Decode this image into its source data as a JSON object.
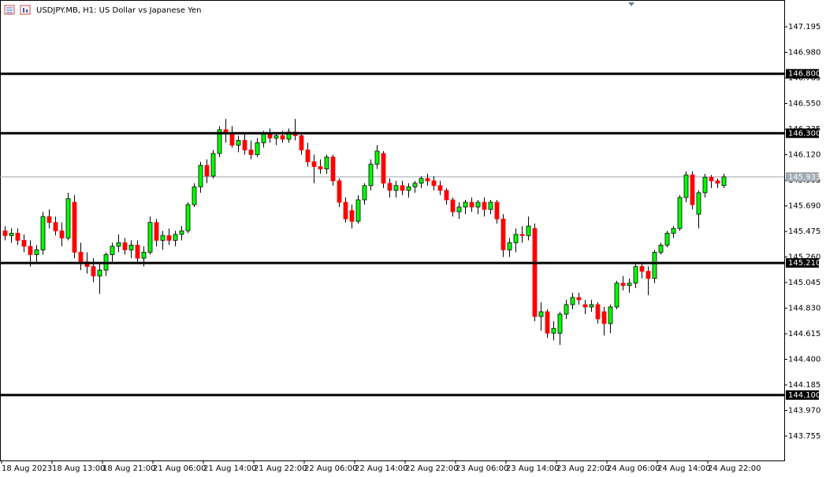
{
  "chart_data": {
    "type": "candlestick",
    "title": "USDJPY.MB, H1:  US Dollar vs Japanese Yen",
    "up_color": "#00ff00",
    "down_color": "#ff0000",
    "outline_color": "#000000",
    "ylim": [
      143.55,
      147.42
    ],
    "yticks": [
      147.195,
      {
        "value": 146.98,
        "label": "146.980"
      },
      146.765,
      {
        "value": 146.55,
        "label": "146.550"
      },
      146.335,
      {
        "value": 146.12,
        "label": "146.120"
      },
      145.905,
      {
        "value": 145.69,
        "label": "145.690"
      },
      145.475,
      {
        "value": 145.26,
        "label": "145.260"
      },
      145.045,
      {
        "value": 144.83,
        "label": "144.830"
      },
      144.615,
      {
        "value": 144.4,
        "label": "144.400"
      },
      144.185,
      {
        "value": 143.97,
        "label": "143.970"
      },
      143.755
    ],
    "hlines": [
      {
        "value": 146.8,
        "label": "146.800"
      },
      {
        "value": 146.3,
        "label": "146.300"
      },
      {
        "value": 145.21,
        "label": "145.210"
      },
      {
        "value": 144.1,
        "label": "144.100"
      }
    ],
    "last_price": 145.933,
    "categories": [
      "18 Aug 2023",
      null,
      null,
      null,
      null,
      null,
      null,
      null,
      "18 Aug 13:00",
      null,
      null,
      null,
      null,
      null,
      null,
      null,
      "18 Aug 21:00",
      null,
      null,
      null,
      null,
      null,
      null,
      null,
      "21 Aug 06:00",
      null,
      null,
      null,
      null,
      null,
      null,
      null,
      "21 Aug 14:00",
      null,
      null,
      null,
      null,
      null,
      null,
      null,
      "21 Aug 22:00",
      null,
      null,
      null,
      null,
      null,
      null,
      null,
      "22 Aug 06:00",
      null,
      null,
      null,
      null,
      null,
      null,
      null,
      "22 Aug 14:00",
      null,
      null,
      null,
      null,
      null,
      null,
      null,
      "22 Aug 22:00",
      null,
      null,
      null,
      null,
      null,
      null,
      null,
      "23 Aug 06:00",
      null,
      null,
      null,
      null,
      null,
      null,
      null,
      "23 Aug 14:00",
      null,
      null,
      null,
      null,
      null,
      null,
      null,
      "23 Aug 22:00",
      null,
      null,
      null,
      null,
      null,
      null,
      null,
      "24 Aug 06:00",
      null,
      null,
      null,
      null,
      null,
      null,
      null,
      "24 Aug 14:00",
      null,
      null,
      null,
      null,
      null,
      null,
      null,
      "24 Aug 22:00",
      null,
      null
    ],
    "ohlc": [
      [
        145.48,
        145.52,
        145.4,
        145.44
      ],
      [
        145.44,
        145.5,
        145.38,
        145.46
      ],
      [
        145.46,
        145.5,
        145.36,
        145.4
      ],
      [
        145.4,
        145.45,
        145.3,
        145.35
      ],
      [
        145.35,
        145.4,
        145.18,
        145.28
      ],
      [
        145.28,
        145.36,
        145.2,
        145.32
      ],
      [
        145.32,
        145.64,
        145.28,
        145.6
      ],
      [
        145.6,
        145.66,
        145.5,
        145.55
      ],
      [
        145.55,
        145.6,
        145.44,
        145.48
      ],
      [
        145.48,
        145.55,
        145.35,
        145.42
      ],
      [
        145.42,
        145.8,
        145.4,
        145.75
      ],
      [
        145.72,
        145.78,
        145.25,
        145.3
      ],
      [
        145.3,
        145.38,
        145.15,
        145.22
      ],
      [
        145.22,
        145.3,
        145.12,
        145.18
      ],
      [
        145.18,
        145.25,
        145.05,
        145.1
      ],
      [
        145.1,
        145.2,
        144.95,
        145.15
      ],
      [
        145.15,
        145.3,
        145.1,
        145.28
      ],
      [
        145.28,
        145.38,
        145.22,
        145.35
      ],
      [
        145.35,
        145.45,
        145.3,
        145.38
      ],
      [
        145.38,
        145.42,
        145.28,
        145.32
      ],
      [
        145.32,
        145.4,
        145.25,
        145.36
      ],
      [
        145.36,
        145.4,
        145.2,
        145.25
      ],
      [
        145.25,
        145.35,
        145.18,
        145.3
      ],
      [
        145.3,
        145.6,
        145.28,
        145.55
      ],
      [
        145.55,
        145.58,
        145.35,
        145.4
      ],
      [
        145.4,
        145.48,
        145.32,
        145.44
      ],
      [
        145.44,
        145.5,
        145.36,
        145.4
      ],
      [
        145.4,
        145.48,
        145.35,
        145.45
      ],
      [
        145.45,
        145.52,
        145.4,
        145.48
      ],
      [
        145.48,
        145.72,
        145.46,
        145.7
      ],
      [
        145.7,
        145.88,
        145.68,
        145.85
      ],
      [
        145.85,
        146.06,
        145.8,
        146.03
      ],
      [
        146.03,
        146.08,
        145.88,
        145.94
      ],
      [
        145.94,
        146.16,
        145.92,
        146.13
      ],
      [
        146.13,
        146.36,
        146.1,
        146.33
      ],
      [
        146.33,
        146.42,
        146.22,
        146.3
      ],
      [
        146.3,
        146.36,
        146.18,
        146.2
      ],
      [
        146.2,
        146.28,
        146.14,
        146.24
      ],
      [
        146.24,
        146.3,
        146.12,
        146.16
      ],
      [
        146.16,
        146.24,
        146.08,
        146.12
      ],
      [
        146.12,
        146.26,
        146.1,
        146.22
      ],
      [
        146.22,
        146.32,
        146.18,
        146.3
      ],
      [
        146.3,
        146.34,
        146.22,
        146.26
      ],
      [
        146.26,
        146.3,
        146.2,
        146.28
      ],
      [
        146.28,
        146.32,
        146.22,
        146.25
      ],
      [
        146.25,
        146.34,
        146.22,
        146.31
      ],
      [
        146.31,
        146.42,
        146.24,
        146.28
      ],
      [
        146.28,
        146.3,
        146.12,
        146.16
      ],
      [
        146.16,
        146.22,
        146.02,
        146.06
      ],
      [
        146.06,
        146.12,
        145.88,
        146.02
      ],
      [
        146.02,
        146.08,
        145.96,
        146.0
      ],
      [
        146.0,
        146.12,
        145.96,
        146.1
      ],
      [
        146.1,
        146.12,
        145.86,
        145.9
      ],
      [
        145.9,
        145.92,
        145.68,
        145.72
      ],
      [
        145.72,
        145.76,
        145.55,
        145.58
      ],
      [
        145.65,
        145.7,
        145.5,
        145.56
      ],
      [
        145.56,
        145.78,
        145.54,
        145.74
      ],
      [
        145.74,
        145.88,
        145.7,
        145.86
      ],
      [
        145.86,
        146.08,
        145.82,
        146.04
      ],
      [
        146.04,
        146.2,
        146.0,
        146.15
      ],
      [
        146.13,
        146.15,
        145.84,
        145.88
      ],
      [
        145.88,
        145.92,
        145.76,
        145.82
      ],
      [
        145.82,
        145.9,
        145.76,
        145.86
      ],
      [
        145.86,
        145.9,
        145.78,
        145.82
      ],
      [
        145.82,
        145.88,
        145.76,
        145.85
      ],
      [
        145.85,
        145.9,
        145.8,
        145.88
      ],
      [
        145.88,
        145.94,
        145.84,
        145.92
      ],
      [
        145.92,
        145.96,
        145.86,
        145.9
      ],
      [
        145.9,
        145.94,
        145.82,
        145.86
      ],
      [
        145.86,
        145.9,
        145.78,
        145.82
      ],
      [
        145.82,
        145.84,
        145.7,
        145.74
      ],
      [
        145.74,
        145.76,
        145.6,
        145.64
      ],
      [
        145.64,
        145.72,
        145.58,
        145.68
      ],
      [
        145.68,
        145.74,
        145.62,
        145.72
      ],
      [
        145.72,
        145.76,
        145.64,
        145.68
      ],
      [
        145.68,
        145.74,
        145.62,
        145.72
      ],
      [
        145.72,
        145.76,
        145.6,
        145.66
      ],
      [
        145.66,
        145.74,
        145.62,
        145.72
      ],
      [
        145.72,
        145.74,
        145.54,
        145.58
      ],
      [
        145.58,
        145.62,
        145.26,
        145.32
      ],
      [
        145.32,
        145.42,
        145.26,
        145.38
      ],
      [
        145.38,
        145.5,
        145.3,
        145.45
      ],
      [
        145.45,
        145.52,
        145.38,
        145.44
      ],
      [
        145.44,
        145.6,
        145.4,
        145.52
      ],
      [
        145.5,
        145.54,
        144.72,
        144.76
      ],
      [
        144.76,
        144.88,
        144.64,
        144.8
      ],
      [
        144.8,
        144.82,
        144.58,
        144.62
      ],
      [
        144.62,
        144.72,
        144.56,
        144.66
      ],
      [
        144.62,
        144.8,
        144.52,
        144.78
      ],
      [
        144.78,
        144.9,
        144.74,
        144.86
      ],
      [
        144.86,
        144.96,
        144.82,
        144.92
      ],
      [
        144.92,
        144.96,
        144.86,
        144.9
      ],
      [
        144.86,
        144.9,
        144.78,
        144.84
      ],
      [
        144.84,
        144.9,
        144.8,
        144.86
      ],
      [
        144.86,
        144.88,
        144.7,
        144.74
      ],
      [
        144.8,
        144.84,
        144.6,
        144.7
      ],
      [
        144.7,
        144.86,
        144.62,
        144.84
      ],
      [
        144.84,
        145.06,
        144.82,
        145.04
      ],
      [
        145.04,
        145.1,
        144.98,
        145.02
      ],
      [
        145.02,
        145.08,
        144.96,
        145.04
      ],
      [
        145.04,
        145.2,
        145.0,
        145.18
      ],
      [
        145.18,
        145.22,
        145.08,
        145.14
      ],
      [
        145.14,
        145.18,
        144.94,
        145.08
      ],
      [
        145.08,
        145.32,
        145.04,
        145.3
      ],
      [
        145.3,
        145.38,
        145.28,
        145.36
      ],
      [
        145.36,
        145.48,
        145.34,
        145.46
      ],
      [
        145.46,
        145.52,
        145.42,
        145.5
      ],
      [
        145.5,
        145.78,
        145.48,
        145.76
      ],
      [
        145.76,
        145.98,
        145.72,
        145.95
      ],
      [
        145.95,
        145.98,
        145.66,
        145.7
      ],
      [
        145.62,
        145.82,
        145.5,
        145.8
      ],
      [
        145.8,
        145.96,
        145.76,
        145.93
      ],
      [
        145.93,
        145.95,
        145.84,
        145.9
      ],
      [
        145.9,
        145.92,
        145.84,
        145.88
      ],
      [
        145.86,
        145.96,
        145.84,
        145.933
      ]
    ]
  }
}
